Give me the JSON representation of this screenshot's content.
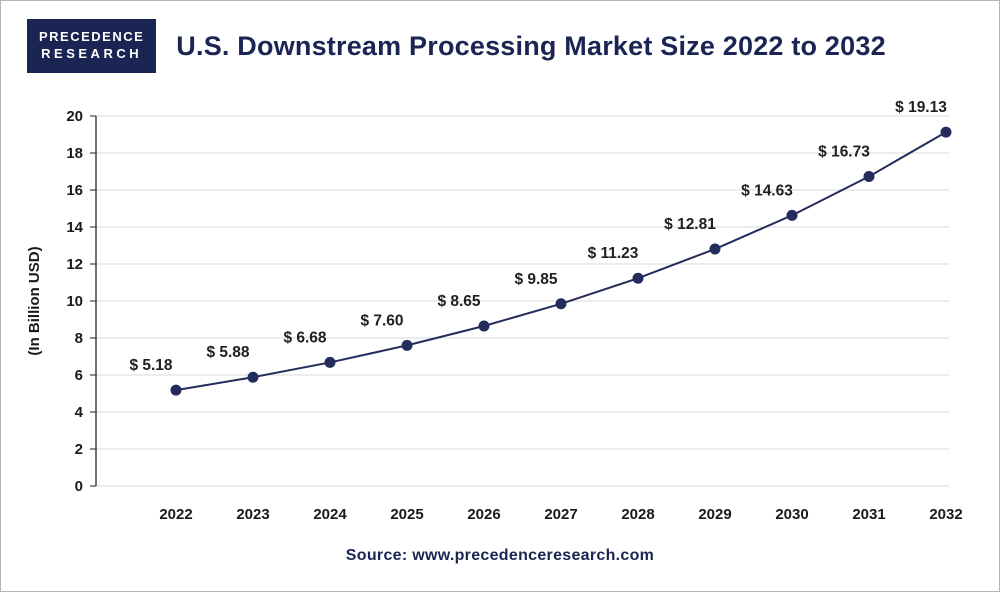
{
  "logo": {
    "line1": "PRECEDENCE",
    "line2": "RESEARCH"
  },
  "header": {
    "title": "U.S. Downstream Processing Market Size 2022 to 2032"
  },
  "footer": {
    "source": "Source: www.precedenceresearch.com"
  },
  "chart_data": {
    "type": "line",
    "title": "U.S. Downstream Processing Market Size 2022 to 2032",
    "categories": [
      "2022",
      "2023",
      "2024",
      "2025",
      "2026",
      "2027",
      "2028",
      "2029",
      "2030",
      "2031",
      "2032"
    ],
    "values": [
      5.18,
      5.88,
      6.68,
      7.6,
      8.65,
      9.85,
      11.23,
      12.81,
      14.63,
      16.73,
      19.13
    ],
    "label_prefix": "$ ",
    "xlabel": "",
    "ylabel": "(In Billion USD)",
    "ylim": [
      0,
      20
    ],
    "ytick_step": 2,
    "grid": true,
    "legend": "none",
    "line_color": "#232c5c",
    "grid_color": "#d9d9d9",
    "axis_color": "#444444",
    "tick_label_color": "#1a1a1a",
    "data_label_color": "#202020"
  }
}
